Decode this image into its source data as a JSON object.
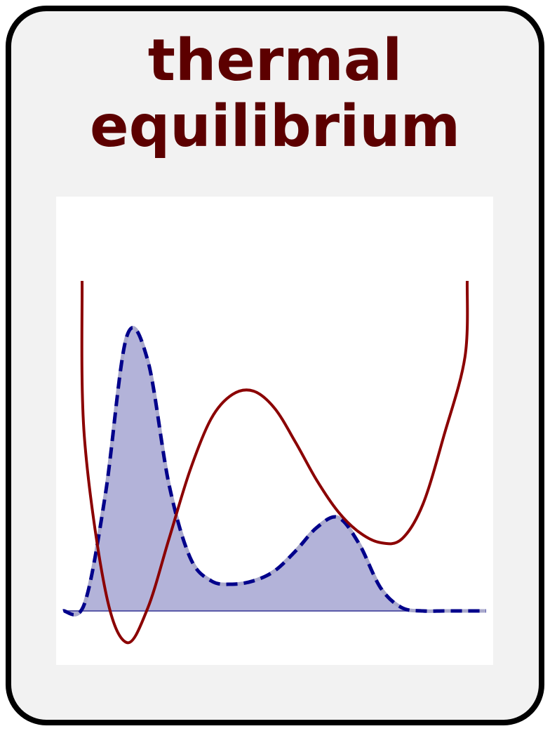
{
  "title": {
    "line1": "thermal",
    "line2": "equilibrium"
  },
  "colors": {
    "card_background": "#f2f2f2",
    "card_border": "#000000",
    "title": "#5c0000",
    "potential_curve": "#8b0000",
    "distribution_line": "#00008b",
    "distribution_fill": "#b3b3d9"
  },
  "chart_data": {
    "type": "line",
    "grid": false,
    "series": [
      {
        "style": "solid",
        "color": "#8b0000",
        "description_keys": "double-well potential",
        "x": [
          0.0,
          0.05,
          0.1,
          0.15,
          0.2,
          0.25,
          0.3,
          0.35,
          0.4,
          0.45,
          0.5,
          0.55,
          0.6,
          0.65,
          0.7,
          0.75,
          0.8,
          0.85,
          0.9,
          0.95,
          1.0
        ],
        "y": [
          1.0,
          0.55,
          0.1,
          -0.05,
          0.05,
          0.25,
          0.45,
          0.6,
          0.67,
          0.68,
          0.63,
          0.53,
          0.42,
          0.33,
          0.27,
          0.24,
          0.25,
          0.35,
          0.55,
          0.78,
          1.0
        ]
      },
      {
        "style": "dashed-filled",
        "color": "#00008b",
        "x": [
          0.0,
          0.05,
          0.1,
          0.15,
          0.2,
          0.25,
          0.3,
          0.35,
          0.4,
          0.45,
          0.5,
          0.55,
          0.6,
          0.65,
          0.7,
          0.75,
          0.8,
          0.85,
          0.9,
          0.95,
          1.0
        ],
        "y": [
          0.0,
          0.02,
          0.35,
          0.82,
          0.75,
          0.38,
          0.16,
          0.09,
          0.08,
          0.09,
          0.12,
          0.18,
          0.25,
          0.28,
          0.2,
          0.07,
          0.01,
          0.0,
          0.0,
          0.0,
          0.0
        ]
      }
    ]
  }
}
